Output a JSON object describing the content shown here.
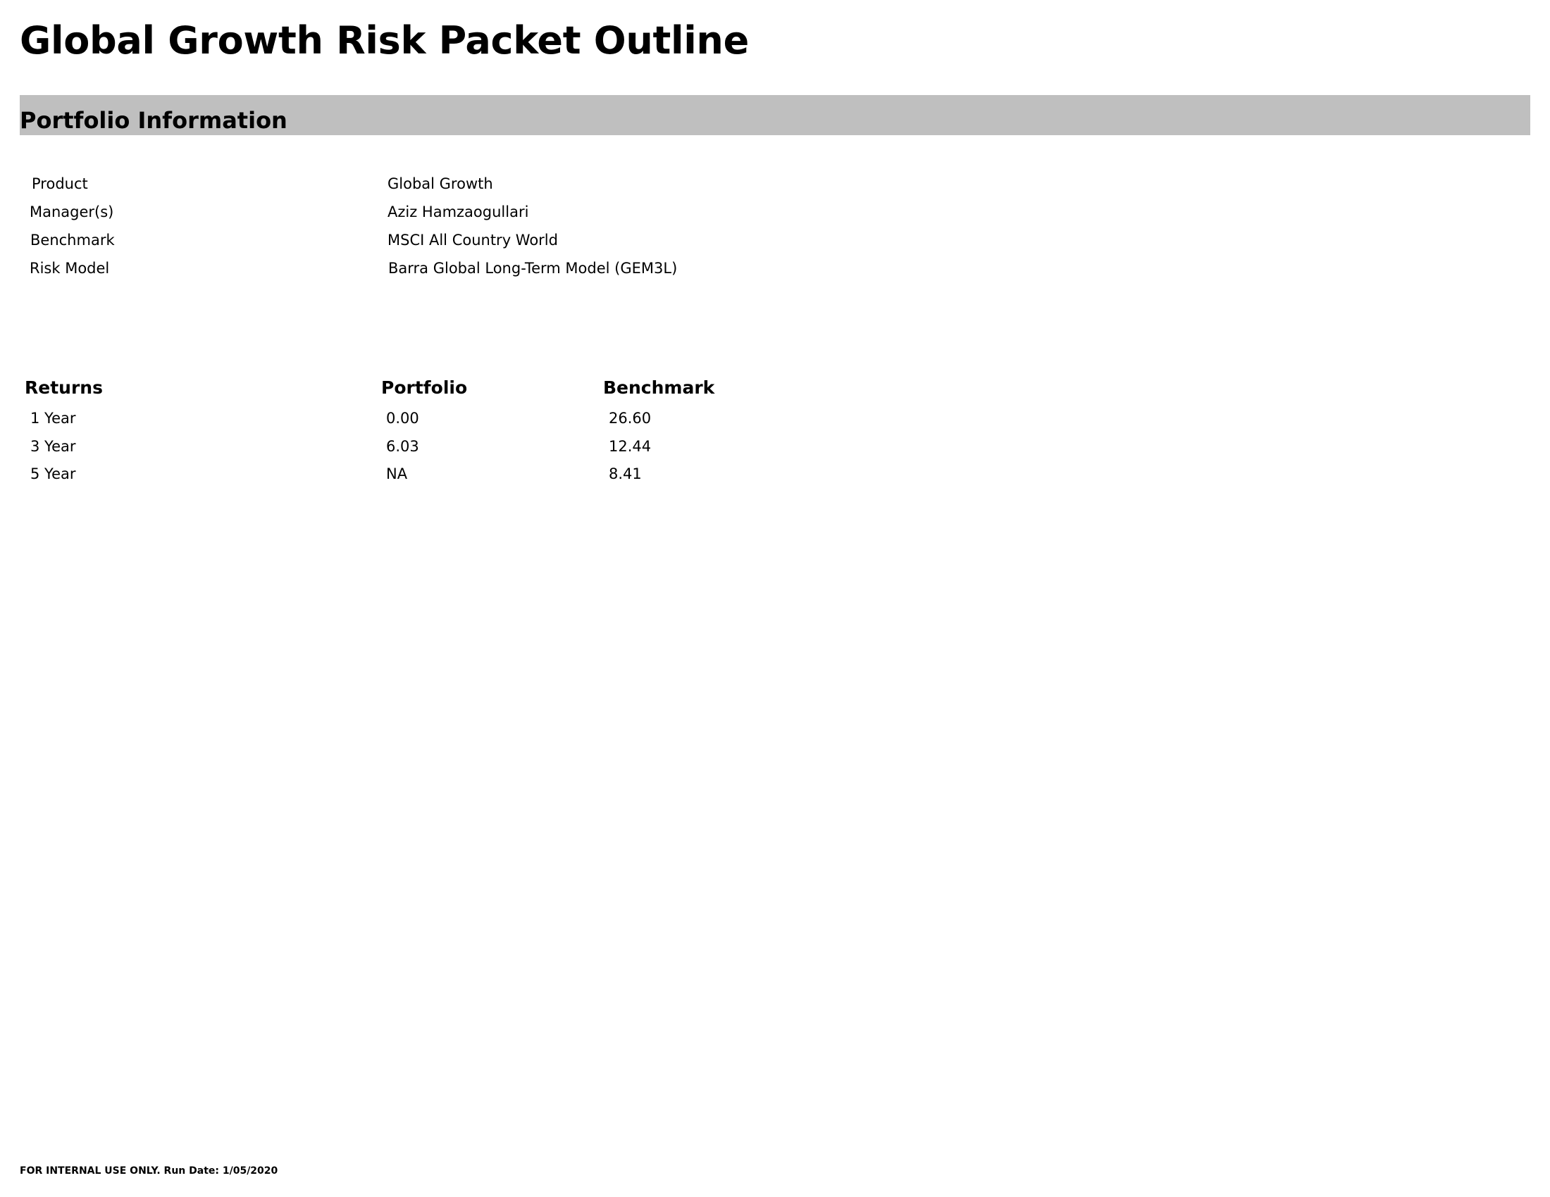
{
  "document": {
    "title": "Global Growth Risk Packet Outline",
    "footer": "FOR INTERNAL USE ONLY. Run Date: 1/05/2020"
  },
  "portfolio_info": {
    "section_title": "Portfolio Information",
    "rows": [
      {
        "label": "Product",
        "value": "Global Growth"
      },
      {
        "label": "Manager(s)",
        "value": "Aziz Hamzaogullari"
      },
      {
        "label": "Benchmark",
        "value": "MSCI All Country World"
      },
      {
        "label": "Risk Model",
        "value": "Barra Global Long-Term Model (GEM3L)"
      }
    ]
  },
  "returns": {
    "headers": {
      "period": "Returns",
      "portfolio": "Portfolio",
      "benchmark": "Benchmark"
    },
    "rows": [
      {
        "period": "1 Year",
        "portfolio": "0.00",
        "benchmark": "26.60"
      },
      {
        "period": "3 Year",
        "portfolio": "6.03",
        "benchmark": "12.44"
      },
      {
        "period": "5 Year",
        "portfolio": "NA",
        "benchmark": "8.41"
      }
    ]
  }
}
